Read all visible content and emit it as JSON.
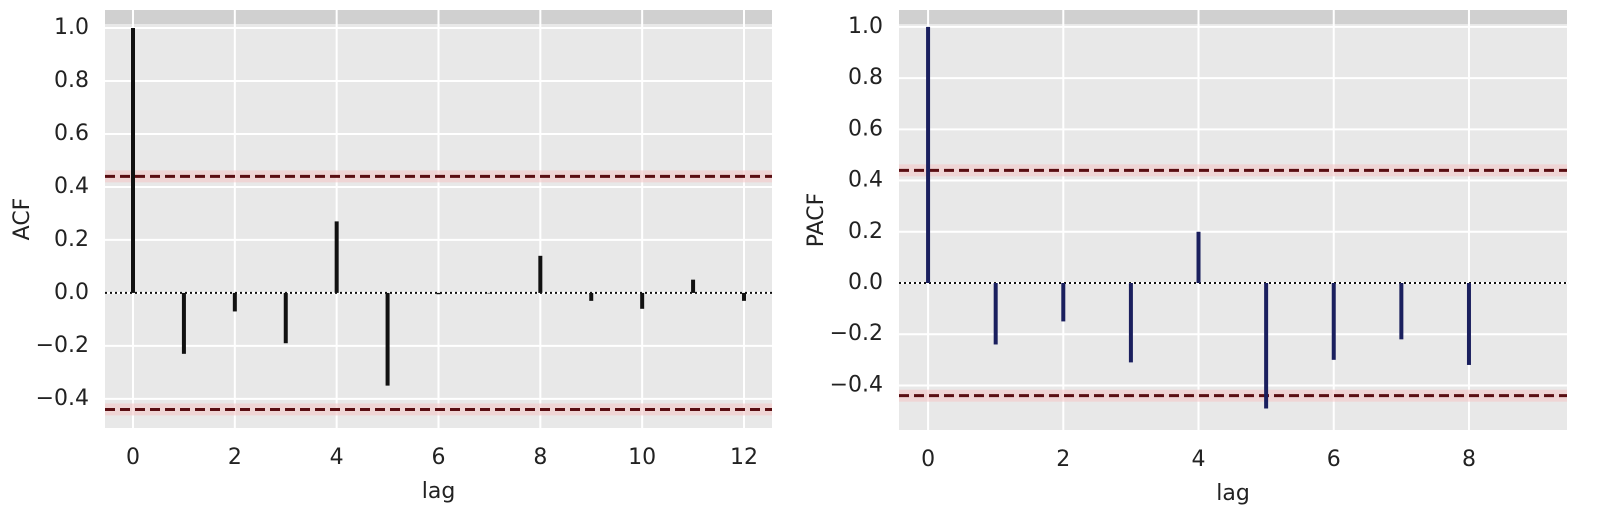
{
  "chart_data": [
    {
      "type": "stem",
      "ylabel": "ACF",
      "xlabel": "lag",
      "color": "#111111",
      "band_color": "#5a0e12",
      "x": [
        0,
        1,
        2,
        3,
        4,
        5,
        6,
        7,
        8,
        9,
        10,
        11,
        12
      ],
      "values": [
        1.0,
        -0.23,
        -0.07,
        -0.19,
        0.27,
        -0.35,
        -0.005,
        0.0,
        0.14,
        -0.03,
        -0.06,
        0.05,
        -0.03
      ],
      "confidence_band": 0.44,
      "xlim": [
        -0.55,
        12.55
      ],
      "ylim": [
        -0.51,
        1.068
      ],
      "xticks": [
        0,
        2,
        4,
        6,
        8,
        10,
        12
      ],
      "yticks": [
        {
          "value": -0.4,
          "label": "−0.4"
        },
        {
          "value": -0.2,
          "label": "−0.2"
        },
        {
          "value": 0,
          "label": "0.0"
        },
        {
          "value": 0.2,
          "label": "0.2"
        },
        {
          "value": 0.4,
          "label": "0.4"
        },
        {
          "value": 0.6,
          "label": "0.6"
        },
        {
          "value": 0.8,
          "label": "0.8"
        },
        {
          "value": 1,
          "label": "1.0"
        }
      ],
      "grid": true
    },
    {
      "type": "stem",
      "ylabel": "PACF",
      "xlabel": "lag",
      "color": "#1a1f5e",
      "band_color": "#5a0e12",
      "x": [
        0,
        1,
        2,
        3,
        4,
        5,
        6,
        7,
        8
      ],
      "values": [
        1.0,
        -0.24,
        -0.15,
        -0.31,
        0.2,
        -0.49,
        -0.3,
        -0.22,
        -0.32
      ],
      "confidence_band": 0.44,
      "xlim": [
        -0.43,
        9.45
      ],
      "ylim": [
        -0.574,
        1.066
      ],
      "xticks": [
        0,
        2,
        4,
        6,
        8
      ],
      "yticks": [
        {
          "value": -0.4,
          "label": "−0.4"
        },
        {
          "value": -0.2,
          "label": "−0.2"
        },
        {
          "value": 0,
          "label": "0.0"
        },
        {
          "value": 0.2,
          "label": "0.2"
        },
        {
          "value": 0.4,
          "label": "0.4"
        },
        {
          "value": 0.6,
          "label": "0.6"
        },
        {
          "value": 0.8,
          "label": "0.8"
        },
        {
          "value": 1,
          "label": "1.0"
        }
      ],
      "grid": true
    }
  ]
}
